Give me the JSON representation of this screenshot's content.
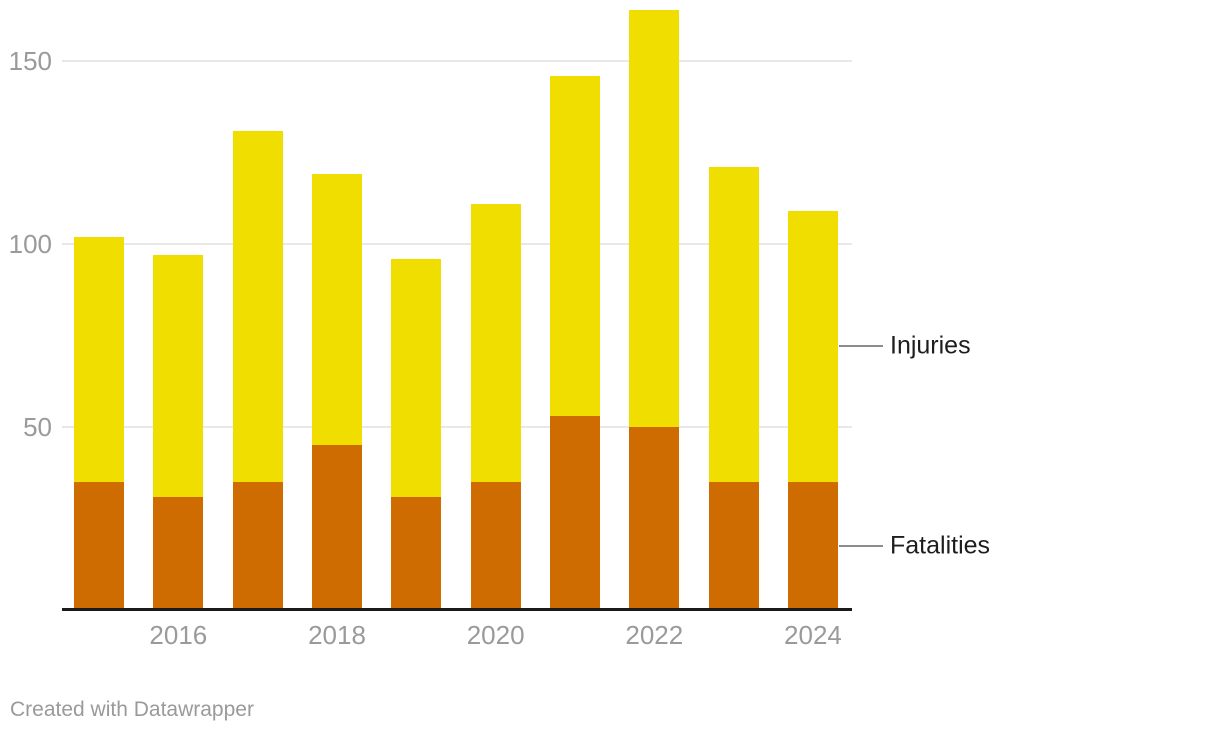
{
  "chart_data": {
    "type": "bar",
    "stacked": true,
    "title": "",
    "categories": [
      "2015",
      "2016",
      "2017",
      "2018",
      "2019",
      "2020",
      "2021",
      "2022",
      "2023",
      "2024"
    ],
    "series": [
      {
        "name": "Fatalities",
        "color": "#CE6C02",
        "values": [
          35,
          31,
          35,
          45,
          31,
          35,
          53,
          50,
          35,
          35
        ]
      },
      {
        "name": "Injuries",
        "color": "#F0DE00",
        "values": [
          67,
          66,
          96,
          74,
          65,
          76,
          93,
          114,
          86,
          74
        ]
      }
    ],
    "totals": [
      102,
      97,
      131,
      119,
      96,
      111,
      146,
      164,
      121,
      109
    ],
    "y_ticks": [
      50,
      100,
      150
    ],
    "x_tick_labels": [
      "2016",
      "2018",
      "2020",
      "2022",
      "2024"
    ],
    "x_tick_category_indices": [
      1,
      3,
      5,
      7,
      9
    ],
    "ylim": [
      0,
      165
    ],
    "grid": "horizontal",
    "legend_position": "right-of-last-bar",
    "colors": {
      "injuries": "#F0DE00",
      "fatalities": "#CE6C02",
      "gridline": "#e8e8e8",
      "axis_line": "#1a1a1a",
      "tick_label": "#9a9a9a",
      "legend_text": "#1d1d1d"
    }
  },
  "legend": {
    "injuries_label": "Injuries",
    "fatalities_label": "Fatalities"
  },
  "footer": {
    "credit": "Created with Datawrapper"
  }
}
